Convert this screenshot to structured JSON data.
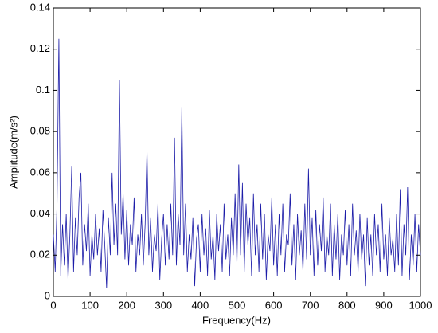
{
  "chart_data": {
    "type": "line",
    "xlabel": "Frequency(Hz)",
    "ylabel": "Amplitude(m/s²)",
    "x": [
      0,
      5,
      10,
      15,
      20,
      25,
      30,
      35,
      40,
      45,
      50,
      55,
      60,
      65,
      70,
      75,
      80,
      85,
      90,
      95,
      100,
      105,
      110,
      115,
      120,
      125,
      130,
      135,
      140,
      145,
      150,
      155,
      160,
      165,
      170,
      175,
      180,
      185,
      190,
      195,
      200,
      205,
      210,
      215,
      220,
      225,
      230,
      235,
      240,
      245,
      250,
      255,
      260,
      265,
      270,
      275,
      280,
      285,
      290,
      295,
      300,
      305,
      310,
      315,
      320,
      325,
      330,
      335,
      340,
      345,
      350,
      355,
      360,
      365,
      370,
      375,
      380,
      385,
      390,
      395,
      400,
      405,
      410,
      415,
      420,
      425,
      430,
      435,
      440,
      445,
      450,
      455,
      460,
      465,
      470,
      475,
      480,
      485,
      490,
      495,
      500,
      505,
      510,
      515,
      520,
      525,
      530,
      535,
      540,
      545,
      550,
      555,
      560,
      565,
      570,
      575,
      580,
      585,
      590,
      595,
      600,
      605,
      610,
      615,
      620,
      625,
      630,
      635,
      640,
      645,
      650,
      655,
      660,
      665,
      670,
      675,
      680,
      685,
      690,
      695,
      700,
      705,
      710,
      715,
      720,
      725,
      730,
      735,
      740,
      745,
      750,
      755,
      760,
      765,
      770,
      775,
      780,
      785,
      790,
      795,
      800,
      805,
      810,
      815,
      820,
      825,
      830,
      835,
      840,
      845,
      850,
      855,
      860,
      865,
      870,
      875,
      880,
      885,
      890,
      895,
      900,
      905,
      910,
      915,
      920,
      925,
      930,
      935,
      940,
      945,
      950,
      955,
      960,
      965,
      970,
      975,
      980,
      985,
      990,
      995,
      1000
    ],
    "values": [
      0.03,
      0.012,
      0.045,
      0.125,
      0.01,
      0.035,
      0.015,
      0.04,
      0.008,
      0.03,
      0.063,
      0.012,
      0.038,
      0.02,
      0.048,
      0.06,
      0.015,
      0.035,
      0.022,
      0.045,
      0.01,
      0.03,
      0.018,
      0.04,
      0.02,
      0.033,
      0.012,
      0.042,
      0.025,
      0.004,
      0.038,
      0.02,
      0.06,
      0.025,
      0.045,
      0.02,
      0.105,
      0.03,
      0.05,
      0.018,
      0.042,
      0.015,
      0.035,
      0.025,
      0.048,
      0.012,
      0.03,
      0.02,
      0.04,
      0.015,
      0.035,
      0.071,
      0.02,
      0.038,
      0.012,
      0.03,
      0.022,
      0.045,
      0.008,
      0.028,
      0.04,
      0.015,
      0.035,
      0.018,
      0.045,
      0.02,
      0.077,
      0.015,
      0.04,
      0.025,
      0.092,
      0.02,
      0.045,
      0.012,
      0.03,
      0.018,
      0.038,
      0.005,
      0.028,
      0.035,
      0.012,
      0.04,
      0.02,
      0.033,
      0.01,
      0.042,
      0.018,
      0.03,
      0.008,
      0.04,
      0.022,
      0.035,
      0.012,
      0.045,
      0.018,
      0.03,
      0.01,
      0.038,
      0.02,
      0.05,
      0.015,
      0.064,
      0.02,
      0.055,
      0.012,
      0.045,
      0.025,
      0.038,
      0.01,
      0.05,
      0.02,
      0.035,
      0.012,
      0.045,
      0.018,
      0.04,
      0.008,
      0.03,
      0.022,
      0.048,
      0.015,
      0.035,
      0.01,
      0.04,
      0.02,
      0.045,
      0.012,
      0.03,
      0.025,
      0.05,
      0.015,
      0.035,
      0.008,
      0.04,
      0.02,
      0.032,
      0.012,
      0.045,
      0.018,
      0.062,
      0.02,
      0.038,
      0.01,
      0.042,
      0.015,
      0.035,
      0.022,
      0.048,
      0.012,
      0.03,
      0.02,
      0.045,
      0.01,
      0.035,
      0.018,
      0.04,
      0.008,
      0.03,
      0.02,
      0.042,
      0.015,
      0.035,
      0.01,
      0.045,
      0.02,
      0.032,
      0.012,
      0.04,
      0.018,
      0.03,
      0.005,
      0.038,
      0.015,
      0.03,
      0.01,
      0.04,
      0.02,
      0.035,
      0.012,
      0.045,
      0.018,
      0.03,
      0.01,
      0.038,
      0.02,
      0.028,
      0.012,
      0.04,
      0.015,
      0.052,
      0.01,
      0.035,
      0.02,
      0.053,
      0.008,
      0.03,
      0.015,
      0.04,
      0.012,
      0.035,
      0.02
    ],
    "color": "#1c1ca8",
    "xlim": [
      0,
      1000
    ],
    "xticks": [
      0,
      100,
      200,
      300,
      400,
      500,
      600,
      700,
      800,
      900,
      1000
    ],
    "ylim": [
      0,
      0.14
    ],
    "yticks": [
      0,
      0.02,
      0.04,
      0.06,
      0.08,
      0.1,
      0.12,
      0.14
    ],
    "grid": false
  }
}
